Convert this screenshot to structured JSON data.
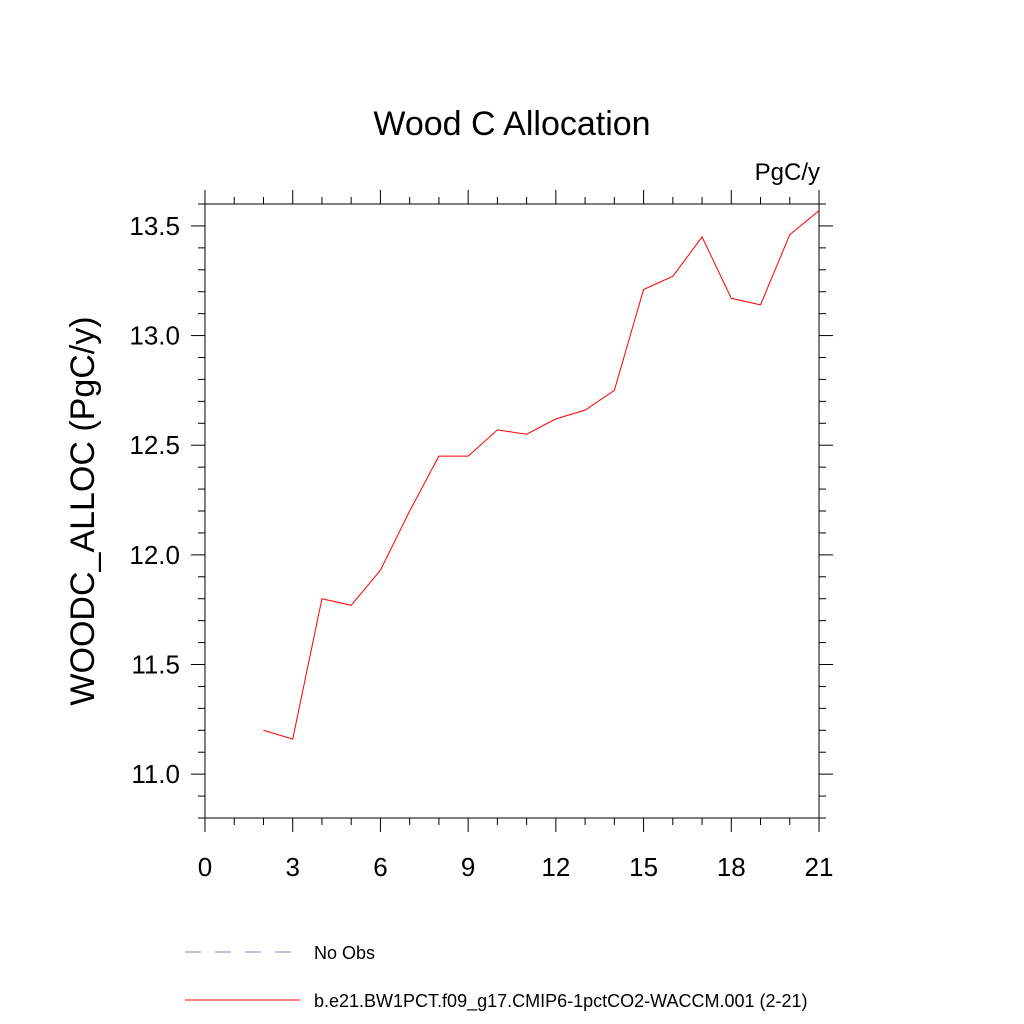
{
  "chart_data": {
    "type": "line",
    "title": "Wood C Allocation",
    "units_label": "PgC/y",
    "ylabel": "WOODC_ALLOC  (PgC/y)",
    "xlabel": "",
    "xlim": [
      0,
      21
    ],
    "ylim": [
      10.8,
      13.6
    ],
    "x_ticks": [
      0,
      3,
      6,
      9,
      12,
      15,
      18,
      21
    ],
    "y_ticks": [
      11.0,
      11.5,
      12.0,
      12.5,
      13.0,
      13.5
    ],
    "x_tick_labels": [
      "0",
      "3",
      "6",
      "9",
      "12",
      "15",
      "18",
      "21"
    ],
    "y_tick_labels": [
      "11.0",
      "11.5",
      "12.0",
      "12.5",
      "13.0",
      "13.5"
    ],
    "grid": false,
    "legend_position": "bottom",
    "series": [
      {
        "name": "b.e21.BW1PCT.f09_g17.CMIP6-1pctCO2-WACCM.001 (2-21)",
        "color": "#ff0000",
        "style": "solid",
        "x": [
          2,
          3,
          4,
          5,
          6,
          7,
          8,
          9,
          10,
          11,
          12,
          13,
          14,
          15,
          16,
          17,
          18,
          19,
          20,
          21
        ],
        "y": [
          11.2,
          11.16,
          11.8,
          11.77,
          11.93,
          12.2,
          12.45,
          12.45,
          12.57,
          12.55,
          12.62,
          12.66,
          12.75,
          13.21,
          13.27,
          13.45,
          13.17,
          13.14,
          13.46,
          13.57
        ]
      }
    ],
    "legend": [
      {
        "label": "No Obs",
        "color": "#8080c0",
        "style": "dashed"
      },
      {
        "label": "b.e21.BW1PCT.f09_g17.CMIP6-1pctCO2-WACCM.001 (2-21)",
        "color": "#ff0000",
        "style": "solid"
      }
    ]
  }
}
